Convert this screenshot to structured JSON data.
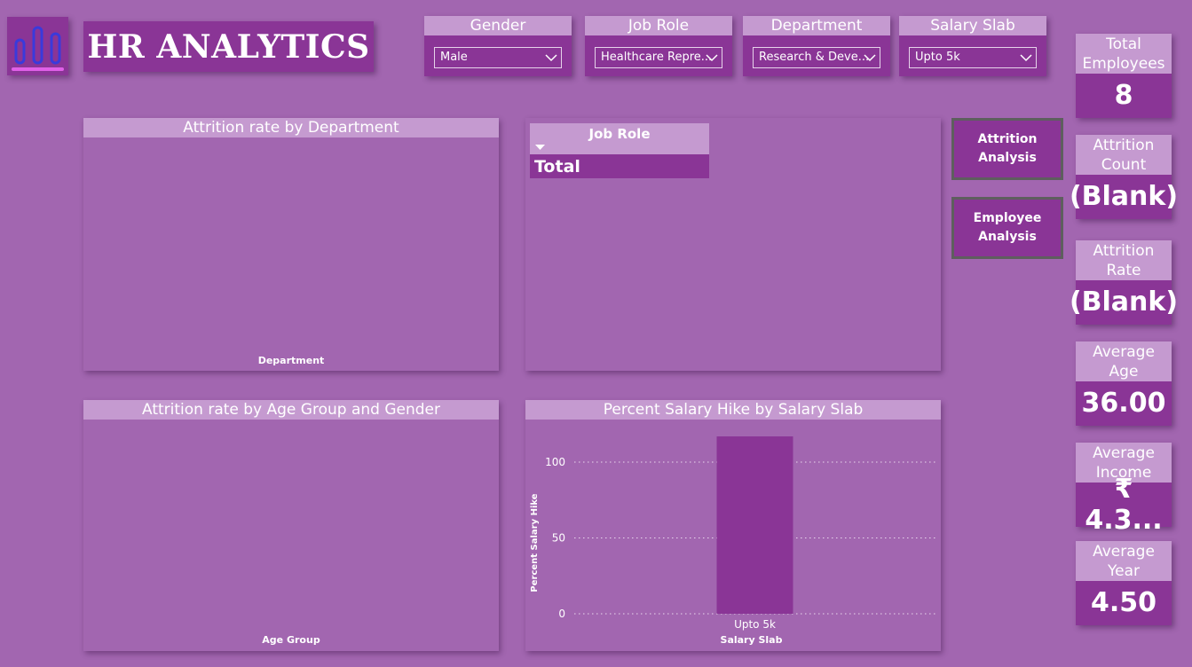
{
  "header": {
    "title": "HR ANALYTICS",
    "logo_icon": "bar-chart-icon"
  },
  "slicers": [
    {
      "label": "Gender",
      "value": "Male"
    },
    {
      "label": "Job Role",
      "value": "Healthcare Repre..."
    },
    {
      "label": "Department",
      "value": "Research & Deve..."
    },
    {
      "label": "Salary Slab",
      "value": "Upto 5k"
    }
  ],
  "kpis": [
    {
      "label_line1": "Total",
      "label_line2": "Employees",
      "value": "8"
    },
    {
      "label_line1": "Attrition",
      "label_line2": "Count",
      "value": "(Blank)"
    },
    {
      "label_line1": "Attrition",
      "label_line2": "Rate",
      "value": "(Blank)"
    },
    {
      "label_line1": "Average",
      "label_line2": "Age",
      "value": "36.00"
    },
    {
      "label_line1": "Average",
      "label_line2": "Income",
      "value": "₹ 4.3..."
    },
    {
      "label_line1": "Average",
      "label_line2": "Year",
      "value": "4.50"
    }
  ],
  "nav": {
    "attrition_line1": "Attrition",
    "attrition_line2": "Analysis",
    "employee_line1": "Employee",
    "employee_line2": "Analysis"
  },
  "panels": {
    "dept": {
      "title": "Attrition rate by Department",
      "xlabel": "Department"
    },
    "jobrole": {
      "column_header": "Job Role",
      "total_label": "Total"
    },
    "age": {
      "title": "Attrition rate by Age Group and Gender",
      "xlabel": "Age Group"
    },
    "salary": {
      "title": "Percent Salary Hike by Salary Slab"
    }
  },
  "colors": {
    "background": "#a266b0",
    "primary": "#8a3596",
    "header": "#c59ad0"
  },
  "chart_data": {
    "type": "bar",
    "title": "Percent Salary Hike by Salary Slab",
    "categories": [
      "Upto 5k"
    ],
    "values": [
      117
    ],
    "xlabel": "Salary Slab",
    "ylabel": "Percent Salary Hike",
    "ylim": [
      0,
      117
    ],
    "yticks": [
      "0",
      "50",
      "100"
    ],
    "grid": true
  }
}
